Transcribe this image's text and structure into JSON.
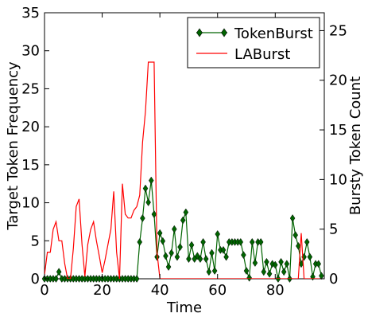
{
  "chart_data": {
    "type": "line",
    "title": "",
    "xlabel": "Time",
    "ylabel_left": "Target Token Frequency",
    "ylabel_right": "Bursty Token Count",
    "xlim": [
      0,
      97
    ],
    "ylim_left": [
      0,
      35
    ],
    "ylim_right": [
      0,
      26.8
    ],
    "xticks": [
      0,
      20,
      40,
      60,
      80
    ],
    "yticks_left": [
      0,
      5,
      10,
      15,
      20,
      25,
      30,
      35
    ],
    "yticks_right": [
      0,
      5,
      10,
      15,
      20,
      25
    ],
    "legend_position": "top-right",
    "grid": false,
    "series": [
      {
        "name": "TokenBurst",
        "axis": "right",
        "color": "#006400",
        "marker": "diamond",
        "x": [
          0,
          1,
          2,
          3,
          4,
          5,
          6,
          7,
          8,
          9,
          10,
          11,
          12,
          13,
          14,
          15,
          16,
          17,
          18,
          19,
          20,
          21,
          22,
          23,
          24,
          25,
          26,
          27,
          28,
          29,
          30,
          31,
          32,
          33,
          34,
          35,
          36,
          37,
          38,
          39,
          40,
          41,
          42,
          43,
          44,
          45,
          46,
          47,
          48,
          49,
          50,
          51,
          52,
          53,
          54,
          55,
          56,
          57,
          58,
          59,
          60,
          61,
          62,
          63,
          64,
          65,
          66,
          67,
          68,
          69,
          70,
          71,
          72,
          73,
          74,
          75,
          76,
          77,
          78,
          79,
          80,
          81,
          82,
          83,
          84,
          85,
          86,
          87,
          88,
          89,
          90,
          91,
          92,
          93,
          94,
          95,
          96
        ],
        "y": [
          0,
          0,
          0,
          0,
          0,
          0.7,
          0,
          0,
          0,
          0,
          0,
          0,
          0,
          0,
          0,
          0,
          0,
          0,
          0,
          0,
          0,
          0,
          0,
          0,
          0,
          0,
          0,
          0,
          0,
          0,
          0,
          0,
          0,
          3.7,
          6.1,
          9.1,
          7.7,
          9.9,
          6.5,
          2.2,
          4.6,
          3.8,
          2.3,
          1.2,
          2.6,
          5.0,
          2.2,
          3.2,
          5.9,
          6.7,
          2.0,
          3.4,
          2.0,
          2.3,
          2.0,
          3.7,
          2.0,
          0.7,
          2.6,
          0.8,
          4.5,
          2.9,
          2.9,
          2.2,
          3.7,
          3.7,
          3.7,
          3.7,
          3.7,
          2.4,
          0.8,
          0.1,
          3.7,
          1.6,
          3.7,
          3.7,
          0.7,
          1.7,
          0.5,
          1.5,
          1.4,
          0,
          1.7,
          0.7,
          1.5,
          0,
          6.1,
          4.4,
          3.3,
          1.5,
          2.2,
          3.7,
          2.2,
          0.2,
          1.5,
          1.5,
          0.3
        ]
      },
      {
        "name": "LABurst",
        "axis": "left",
        "color": "#ff0000",
        "marker": "none",
        "x": [
          0,
          1,
          2,
          3,
          4,
          5,
          6,
          7,
          8,
          9,
          10,
          11,
          12,
          13,
          14,
          15,
          16,
          17,
          18,
          19,
          20,
          21,
          22,
          23,
          24,
          25,
          26,
          27,
          28,
          29,
          30,
          31,
          32,
          33,
          34,
          35,
          36,
          37,
          38,
          39,
          40,
          41,
          42,
          43,
          44,
          45,
          46,
          47,
          48,
          49,
          50,
          51,
          52,
          53,
          54,
          55,
          56,
          57,
          58,
          59,
          60,
          61,
          62,
          63,
          64,
          65,
          66,
          67,
          68,
          69,
          70,
          71,
          72,
          73,
          74,
          75,
          76,
          77,
          78,
          79,
          80,
          81,
          82,
          83,
          84,
          85,
          86,
          87,
          88,
          89,
          90,
          91,
          92,
          93,
          94,
          95,
          96
        ],
        "y": [
          0.5,
          3.5,
          3.5,
          6.5,
          7.5,
          5.0,
          5.0,
          2.0,
          0,
          0,
          4.0,
          9.5,
          10.5,
          4.5,
          0.3,
          4.5,
          6.5,
          7.5,
          5.0,
          3.0,
          0.8,
          2.5,
          4.5,
          6.5,
          11.5,
          3.5,
          0,
          12.5,
          8.5,
          8.0,
          8.0,
          9.0,
          9.5,
          11.0,
          18.0,
          22.0,
          28.5,
          28.5,
          28.5,
          3.5,
          0,
          0,
          0,
          0,
          0,
          0,
          0,
          0,
          0,
          0,
          0,
          0,
          0,
          0,
          0,
          0,
          0,
          0,
          0,
          0,
          0,
          0,
          0,
          0,
          0,
          0,
          0,
          0,
          0,
          0,
          0,
          0,
          0,
          0,
          0,
          0,
          0,
          0,
          0,
          0,
          0,
          0,
          0,
          0,
          0,
          0,
          0,
          0,
          0,
          6.0,
          0,
          0,
          0,
          0,
          0,
          0,
          0
        ]
      }
    ]
  }
}
